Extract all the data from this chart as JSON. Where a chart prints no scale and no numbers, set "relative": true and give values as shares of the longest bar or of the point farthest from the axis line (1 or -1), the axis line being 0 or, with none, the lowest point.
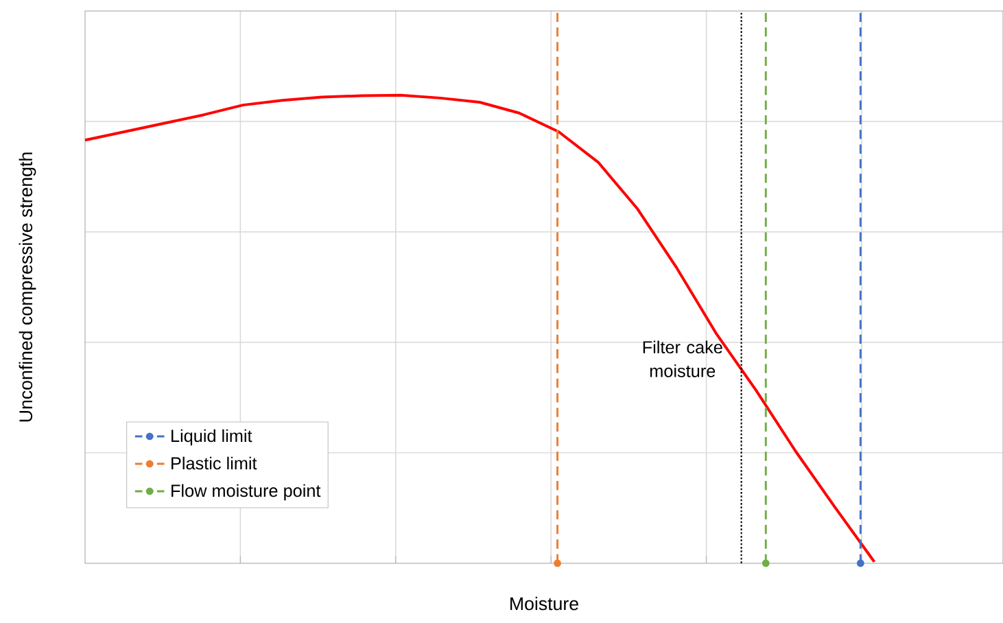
{
  "chart_data": {
    "type": "line",
    "relative": true,
    "xlabel": "Moisture",
    "ylabel": "Unconfined compressive strength",
    "categories": [
      null,
      null,
      null,
      null,
      null,
      null,
      null,
      null,
      null,
      null,
      null,
      null,
      null,
      null,
      null,
      null,
      null,
      null,
      null,
      null,
      null
    ],
    "grid": true,
    "series": [
      {
        "color": "#ff0000",
        "values": [
          0.904,
          0.922,
          0.94,
          0.958,
          0.979,
          0.989,
          0.996,
          0.999,
          1.0,
          0.994,
          0.985,
          0.962,
          0.922,
          0.857,
          0.757,
          0.63,
          0.49,
          0.37,
          0.24,
          0.12,
          0.003
        ]
      }
    ],
    "ref_lines": [
      {
        "axis": "x",
        "label": "Liquid limit",
        "color": "#4472c4",
        "line_style": "dashed"
      },
      {
        "axis": "x",
        "label": "Plastic limit",
        "color": "#ed7d31",
        "line_style": "dashed"
      },
      {
        "axis": "x",
        "label": "Flow moisture point",
        "color": "#70ad47",
        "line_style": "dashed"
      },
      {
        "axis": "x",
        "label": "Filter cake moisture",
        "color": "#000000",
        "line_style": "dotted"
      }
    ]
  }
}
